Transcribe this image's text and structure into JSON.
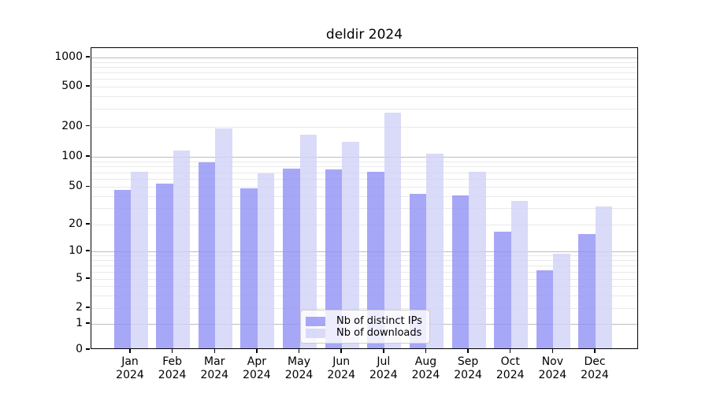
{
  "title": "deldir 2024",
  "chart_data": {
    "type": "bar",
    "title": "deldir 2024",
    "xlabel": "",
    "ylabel": "",
    "yscale": "asinh-log",
    "grid": "horizontal major and minor gridlines, no vertical gridlines",
    "legend_position": "lower center",
    "ylim": [
      0,
      1400
    ],
    "yticks": [
      0,
      1,
      2,
      5,
      10,
      20,
      50,
      100,
      200,
      500,
      1000
    ],
    "ytick_labels": [
      "0",
      "1",
      "2",
      "5",
      "10",
      "20",
      "50",
      "100",
      "200",
      "500",
      "1000"
    ],
    "categories": [
      "Jan 2024",
      "Feb 2024",
      "Mar 2024",
      "Apr 2024",
      "May 2024",
      "Jun 2024",
      "Jul 2024",
      "Aug 2024",
      "Sep 2024",
      "Oct 2024",
      "Nov 2024",
      "Dec 2024"
    ],
    "series": [
      {
        "name": "Nb of distinct IPs",
        "color": "#9191f5",
        "values": [
          45,
          52,
          85,
          47,
          73,
          72,
          68,
          41,
          39,
          16,
          6,
          15
        ]
      },
      {
        "name": "Nb of downloads",
        "color": "#d1d1f8",
        "values": [
          69,
          112,
          185,
          66,
          160,
          137,
          263,
          104,
          68,
          34,
          9,
          30
        ]
      }
    ]
  }
}
